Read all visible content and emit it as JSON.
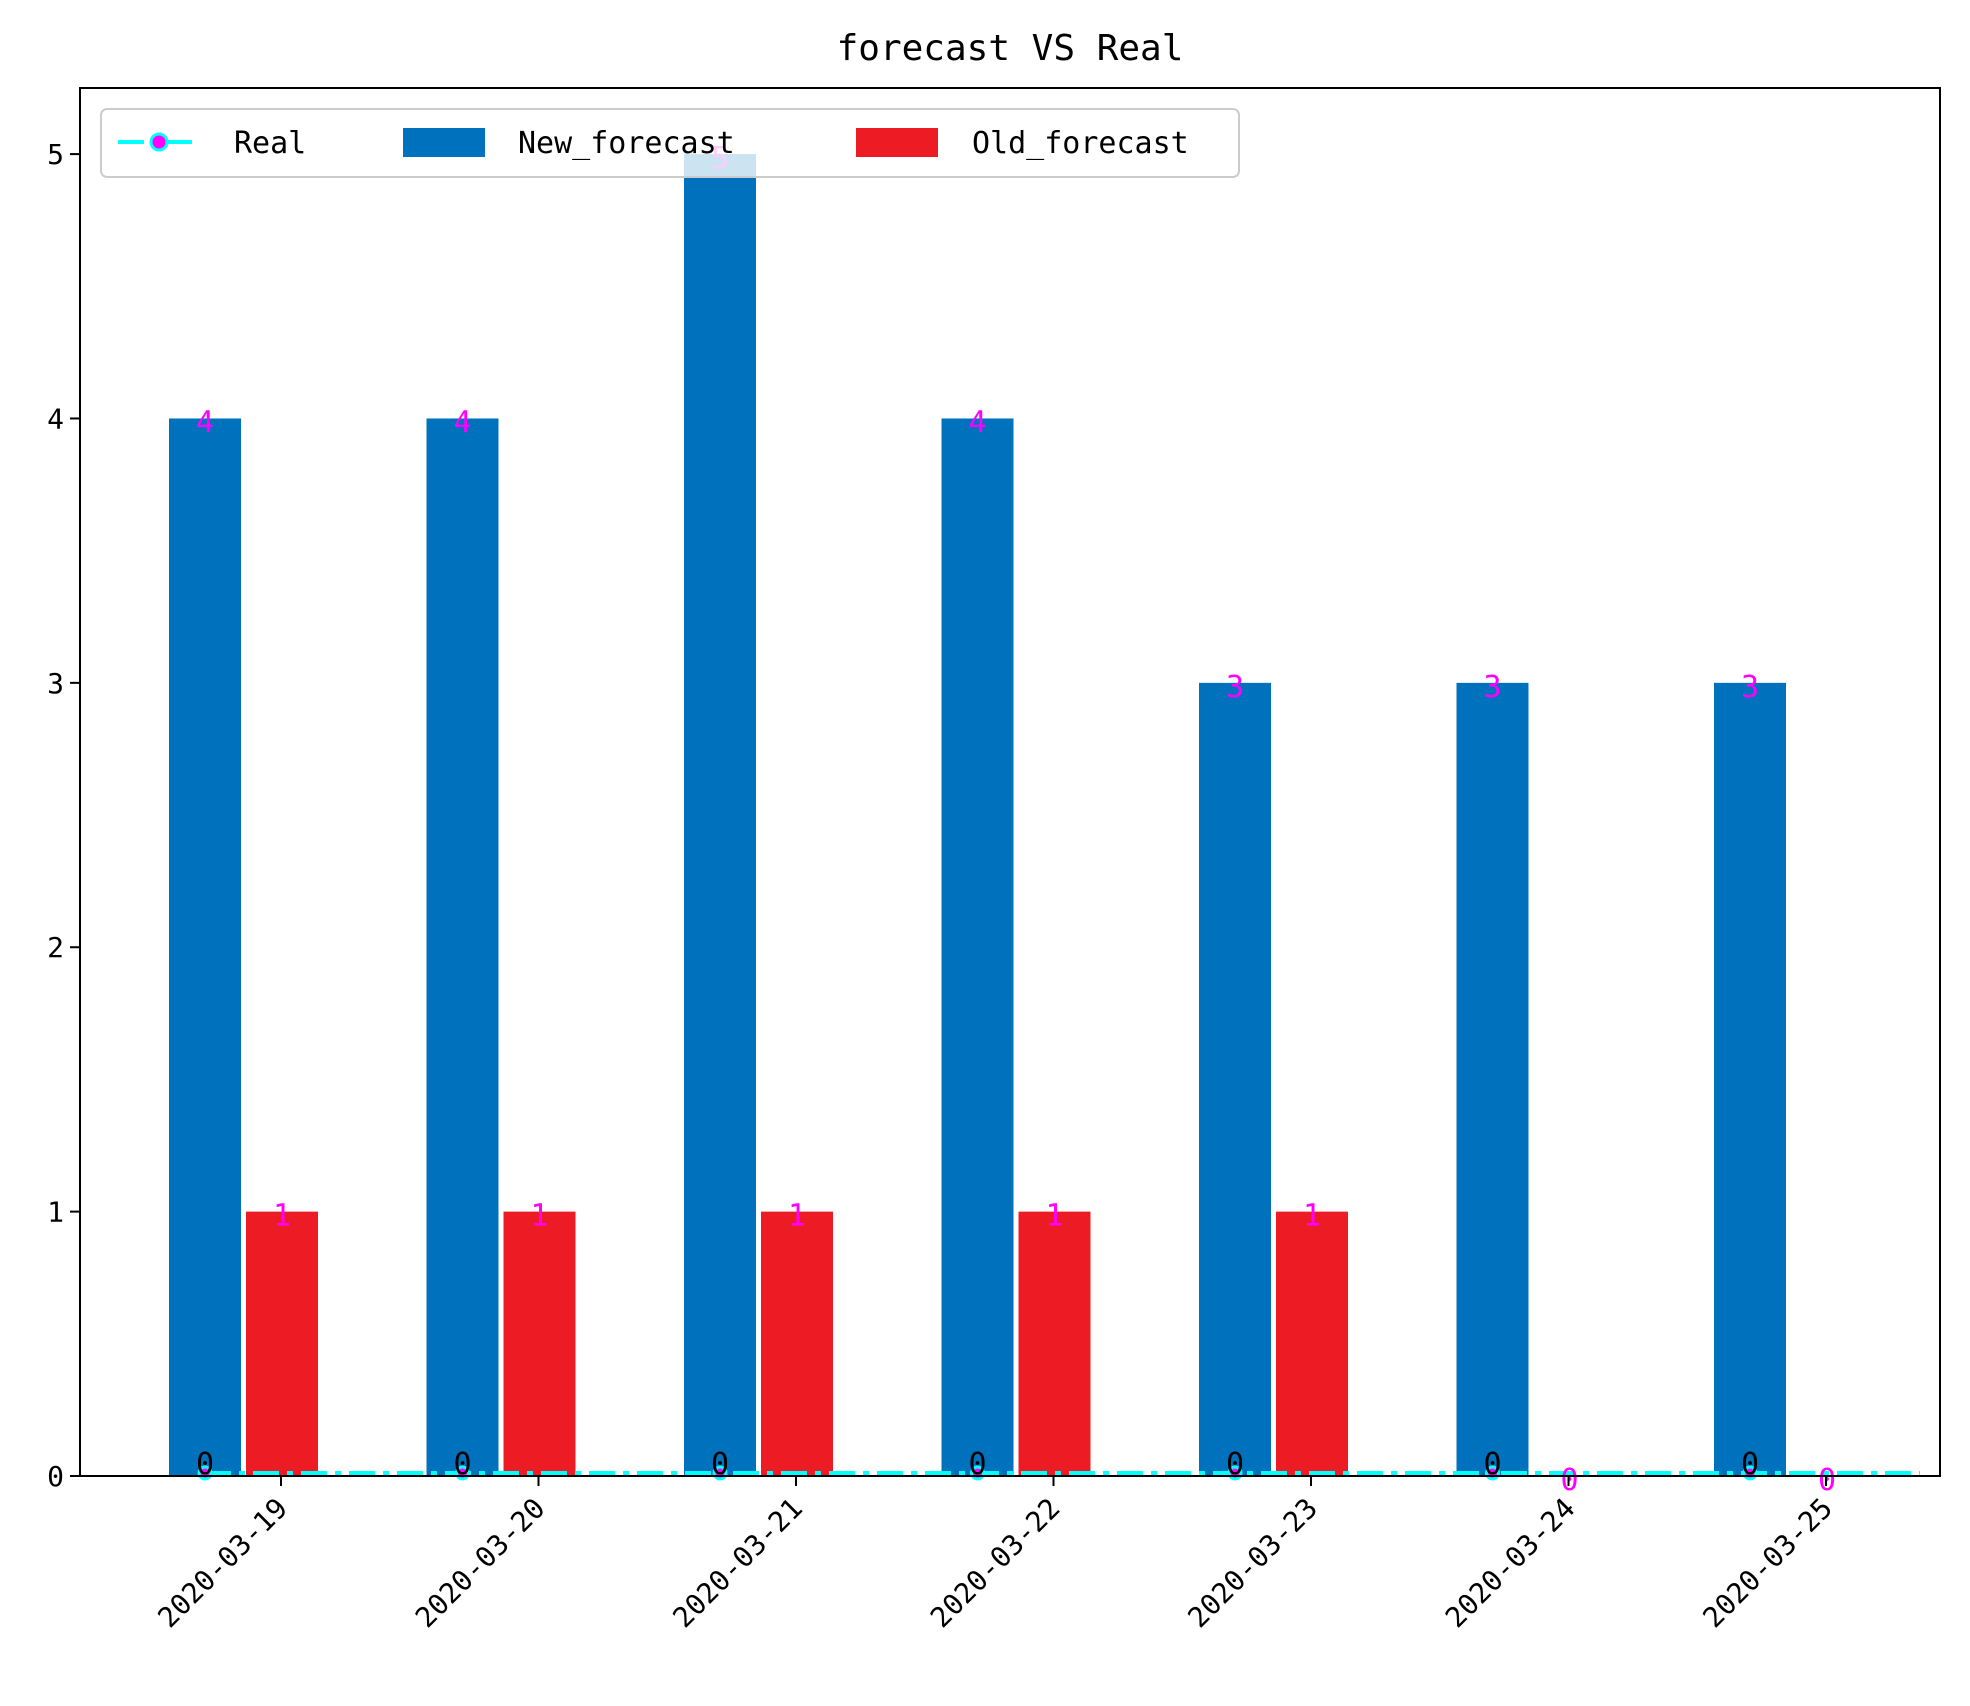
{
  "chart_data": {
    "type": "bar",
    "title": "forecast VS Real",
    "xlabel": "",
    "ylabel": "",
    "categories": [
      "2020-03-19",
      "2020-03-20",
      "2020-03-21",
      "2020-03-22",
      "2020-03-23",
      "2020-03-24",
      "2020-03-25"
    ],
    "ylim": [
      0,
      5.25
    ],
    "yticks": [
      "0",
      "1",
      "2",
      "3",
      "4",
      "5"
    ],
    "grid": false,
    "legend_position": "top-left",
    "series": [
      {
        "name": "Real",
        "kind": "line",
        "values": [
          0,
          0,
          0,
          0,
          0,
          0,
          0
        ],
        "labels": [
          "0",
          "0",
          "0",
          "0",
          "0",
          "0",
          "0"
        ],
        "color": "#00ffff",
        "marker_color": "#ff00ff"
      },
      {
        "name": "New_forecast",
        "kind": "bar",
        "values": [
          4,
          4,
          5,
          4,
          3,
          3,
          3
        ],
        "labels": [
          "4",
          "4",
          "5",
          "4",
          "3",
          "3",
          "3"
        ],
        "color": "#0072bd"
      },
      {
        "name": "Old_forecast",
        "kind": "bar",
        "values": [
          1,
          1,
          1,
          1,
          1,
          0,
          0
        ],
        "labels": [
          "1",
          "1",
          "1",
          "1",
          "1",
          "0",
          "0"
        ],
        "color": "#ed1c24"
      }
    ],
    "label_colors": {
      "value": "#ff00ff",
      "real": "#000000"
    }
  }
}
